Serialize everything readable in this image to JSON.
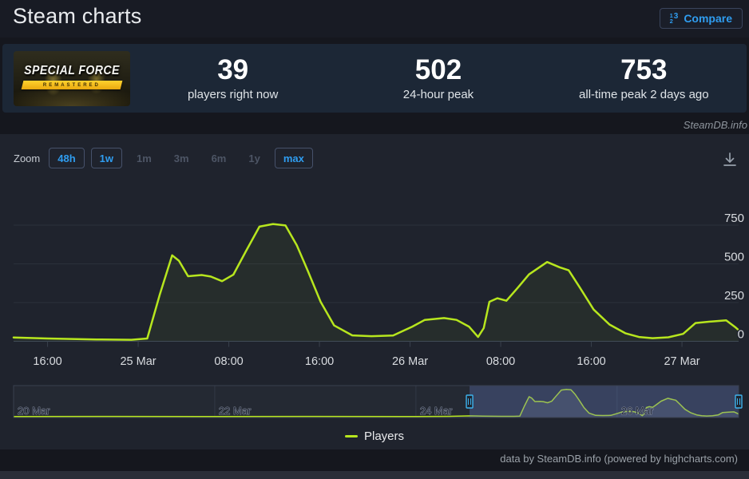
{
  "header": {
    "title": "Steam charts",
    "compare_label": "Compare",
    "compare_icon": "numbered-list-123"
  },
  "capsule": {
    "title": "SPECIAL FORCE",
    "subtitle": "REMASTERED"
  },
  "stats": {
    "items": [
      {
        "value": "39",
        "label": "players right now"
      },
      {
        "value": "502",
        "label": "24-hour peak"
      },
      {
        "value": "753",
        "label": "all-time peak 2 days ago"
      }
    ]
  },
  "watermark": "SteamDB.info",
  "toolbar": {
    "zoom_label": "Zoom",
    "download_icon": "download-arrow",
    "buttons": [
      {
        "label": "48h",
        "state": "enabled"
      },
      {
        "label": "1w",
        "state": "enabled"
      },
      {
        "label": "1m",
        "state": "disabled"
      },
      {
        "label": "3m",
        "state": "disabled"
      },
      {
        "label": "6m",
        "state": "disabled"
      },
      {
        "label": "1y",
        "state": "disabled"
      },
      {
        "label": "max",
        "state": "enabled"
      }
    ]
  },
  "chart_data": {
    "type": "line",
    "grid": "horizontal",
    "legend_position": "bottom-center",
    "ylim": [
      0,
      1030
    ],
    "yticks": [
      0,
      250,
      500,
      750
    ],
    "x_unit": "hours since 20 Mar 00:00",
    "series": [
      {
        "name": "Players",
        "color": "#b7e61e",
        "points": [
          [
            0,
            6
          ],
          [
            24,
            9
          ],
          [
            48,
            6
          ],
          [
            72,
            9
          ],
          [
            96,
            7
          ],
          [
            104,
            10
          ],
          [
            109,
            25
          ],
          [
            112,
            18
          ],
          [
            116.3,
            12
          ],
          [
            119.4,
            10
          ],
          [
            120.8,
            18
          ],
          [
            121.9,
            300
          ],
          [
            123,
            555
          ],
          [
            123.6,
            520
          ],
          [
            124.4,
            420
          ],
          [
            125.6,
            428
          ],
          [
            126.4,
            418
          ],
          [
            127.4,
            388
          ],
          [
            128.4,
            430
          ],
          [
            129.5,
            580
          ],
          [
            130.7,
            740
          ],
          [
            131.9,
            757
          ],
          [
            133,
            748
          ],
          [
            134,
            620
          ],
          [
            135,
            450
          ],
          [
            136.1,
            255
          ],
          [
            137.3,
            102
          ],
          [
            138.9,
            38
          ],
          [
            140.6,
            33
          ],
          [
            142.5,
            37
          ],
          [
            144.2,
            95
          ],
          [
            145.3,
            138
          ],
          [
            147,
            150
          ],
          [
            148.1,
            138
          ],
          [
            149.2,
            95
          ],
          [
            150,
            28
          ],
          [
            150.5,
            85
          ],
          [
            151,
            255
          ],
          [
            151.7,
            278
          ],
          [
            152.5,
            262
          ],
          [
            153.5,
            345
          ],
          [
            154.5,
            432
          ],
          [
            156.1,
            512
          ],
          [
            157.2,
            478
          ],
          [
            158,
            458
          ],
          [
            159,
            345
          ],
          [
            160.2,
            205
          ],
          [
            161.6,
            108
          ],
          [
            163,
            52
          ],
          [
            164.2,
            28
          ],
          [
            165.4,
            20
          ],
          [
            166.8,
            26
          ],
          [
            168.1,
            48
          ],
          [
            169.2,
            118
          ],
          [
            170.6,
            128
          ],
          [
            171.9,
            135
          ],
          [
            172.7,
            92
          ],
          [
            173,
            72
          ]
        ]
      }
    ],
    "main_view": {
      "t_range": [
        109,
        173
      ],
      "xticks": [
        {
          "t": 112,
          "label": "16:00"
        },
        {
          "t": 120,
          "label": "25 Mar"
        },
        {
          "t": 128,
          "label": "08:00"
        },
        {
          "t": 136,
          "label": "16:00"
        },
        {
          "t": 144,
          "label": "26 Mar"
        },
        {
          "t": 152,
          "label": "08:00"
        },
        {
          "t": 160,
          "label": "16:00"
        },
        {
          "t": 168,
          "label": "27 Mar"
        }
      ]
    },
    "navigator": {
      "t_range": [
        0,
        173
      ],
      "selected_t_range": [
        108.8,
        173
      ],
      "xticks": [
        {
          "t": 0,
          "label": "20 Mar"
        },
        {
          "t": 48,
          "label": "22 Mar"
        },
        {
          "t": 96,
          "label": "24 Mar"
        },
        {
          "t": 144,
          "label": "26 Mar"
        }
      ]
    }
  },
  "footer": {
    "credit": "data by SteamDB.info (powered by highcharts.com)"
  },
  "colors": {
    "accent_blue": "#2f9df0",
    "series_green": "#b7e61e",
    "stats_bg": "#1c2736",
    "panel_bg": "#1f232d",
    "page_bg": "#15171e",
    "navigator_mask": "rgba(100,122,190,0.32)",
    "handle_blue": "#3db3ee"
  }
}
